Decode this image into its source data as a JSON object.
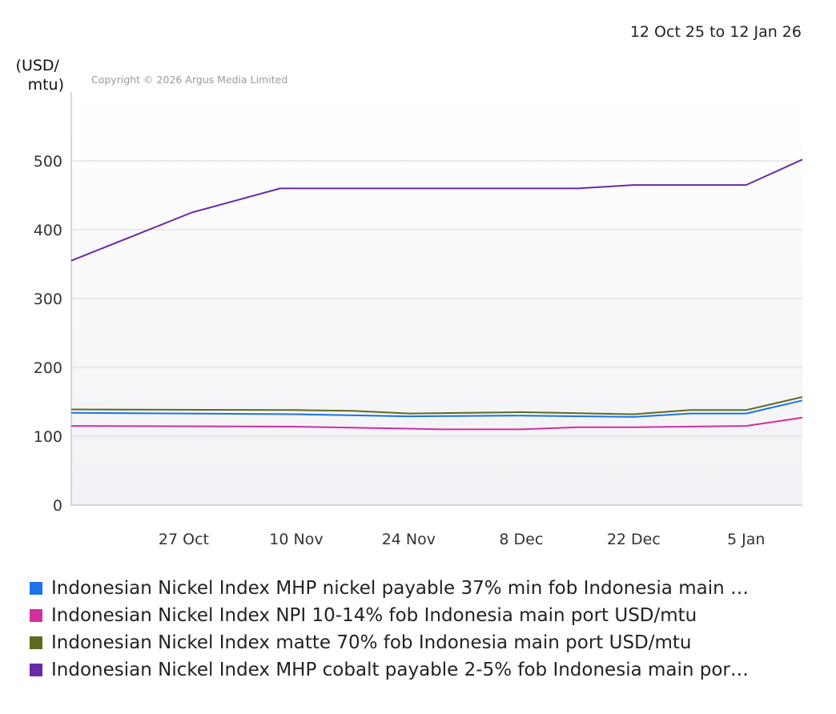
{
  "chart_data": {
    "type": "line",
    "date_range": "12 Oct 25 to 12 Jan 26",
    "ylabel": "(USD/\nmtu)",
    "copyright": "Copyright © 2026 Argus Media Limited",
    "ylim": [
      0,
      600
    ],
    "yticks": [
      0,
      100,
      200,
      300,
      400,
      500
    ],
    "xlim": [
      "2025-10-13",
      "2026-01-12"
    ],
    "xticks": [
      {
        "label": "27 Oct",
        "date": "2025-10-27"
      },
      {
        "label": "10 Nov",
        "date": "2025-11-10"
      },
      {
        "label": "24 Nov",
        "date": "2025-11-24"
      },
      {
        "label": "8 Dec",
        "date": "2025-12-08"
      },
      {
        "label": "22 Dec",
        "date": "2025-12-22"
      },
      {
        "label": "5 Jan",
        "date": "2026-01-05"
      }
    ],
    "grid": true,
    "legend_position": "bottom",
    "series": [
      {
        "name": "Indonesian Nickel Index MHP nickel payable 37% min fob Indonesia main …",
        "color": "#1a73e8",
        "points": [
          {
            "x": "2025-10-13",
            "y": 134
          },
          {
            "x": "2025-11-10",
            "y": 132
          },
          {
            "x": "2025-11-24",
            "y": 129
          },
          {
            "x": "2025-12-08",
            "y": 130
          },
          {
            "x": "2025-12-22",
            "y": 128
          },
          {
            "x": "2025-12-29",
            "y": 133
          },
          {
            "x": "2026-01-05",
            "y": 133
          },
          {
            "x": "2026-01-12",
            "y": 152
          }
        ]
      },
      {
        "name": "Indonesian Nickel Index NPI 10-14% fob Indonesia main port USD/mtu",
        "color": "#d12f9f",
        "points": [
          {
            "x": "2025-10-13",
            "y": 115
          },
          {
            "x": "2025-11-10",
            "y": 114
          },
          {
            "x": "2025-11-24",
            "y": 111
          },
          {
            "x": "2025-11-28",
            "y": 110
          },
          {
            "x": "2025-12-08",
            "y": 110
          },
          {
            "x": "2025-12-15",
            "y": 113
          },
          {
            "x": "2025-12-22",
            "y": 113
          },
          {
            "x": "2026-01-05",
            "y": 115
          },
          {
            "x": "2026-01-12",
            "y": 127
          }
        ]
      },
      {
        "name": "Indonesian Nickel Index matte 70% fob Indonesia main port USD/mtu",
        "color": "#5c6b1f",
        "points": [
          {
            "x": "2025-10-13",
            "y": 139
          },
          {
            "x": "2025-11-10",
            "y": 138
          },
          {
            "x": "2025-11-17",
            "y": 137
          },
          {
            "x": "2025-11-24",
            "y": 133
          },
          {
            "x": "2025-12-08",
            "y": 135
          },
          {
            "x": "2025-12-22",
            "y": 132
          },
          {
            "x": "2025-12-29",
            "y": 138
          },
          {
            "x": "2026-01-05",
            "y": 138
          },
          {
            "x": "2026-01-12",
            "y": 157
          }
        ]
      },
      {
        "name": "Indonesian Nickel Index MHP cobalt payable 2-5% fob Indonesia main por…",
        "color": "#6a2aa6",
        "points": [
          {
            "x": "2025-10-13",
            "y": 355
          },
          {
            "x": "2025-10-28",
            "y": 425
          },
          {
            "x": "2025-11-08",
            "y": 460
          },
          {
            "x": "2025-12-15",
            "y": 460
          },
          {
            "x": "2025-12-22",
            "y": 465
          },
          {
            "x": "2026-01-05",
            "y": 465
          },
          {
            "x": "2026-01-12",
            "y": 502
          }
        ]
      }
    ]
  }
}
